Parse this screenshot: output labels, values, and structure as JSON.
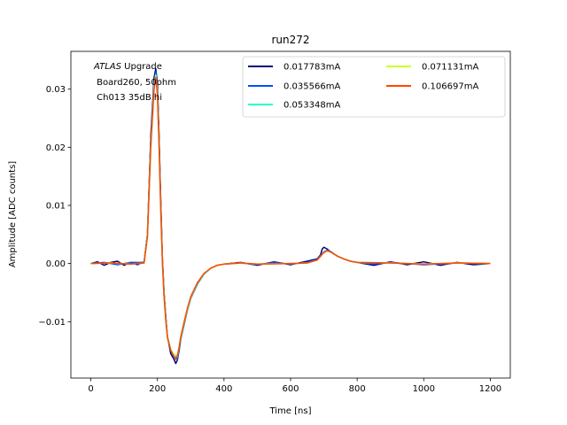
{
  "chart_data": {
    "type": "line",
    "title": "run272",
    "xlabel": "Time [ns]",
    "ylabel": "Amplitude [ADC counts]",
    "xlim": [
      -60,
      1260
    ],
    "ylim": [
      -0.0197,
      0.0365
    ],
    "xticks": [
      0,
      200,
      400,
      600,
      800,
      1000,
      1200
    ],
    "yticks": [
      -0.01,
      0.0,
      0.01,
      0.02,
      0.03
    ],
    "xtick_labels": [
      "0",
      "200",
      "400",
      "600",
      "800",
      "1000",
      "1200"
    ],
    "ytick_labels": [
      "−0.01",
      "0.00",
      "0.01",
      "0.02",
      "0.03"
    ],
    "grid": false,
    "legend_placement": "top-right",
    "annotation": {
      "experiment": "ATLAS",
      "line1_suffix": " Upgrade",
      "line2": " Board260, 50ohm",
      "line3": " Ch013 35dB hi"
    },
    "series": [
      {
        "name": "0.017783mA",
        "color": "#00007f",
        "x": [
          0,
          20,
          40,
          60,
          80,
          100,
          120,
          140,
          160,
          170,
          180,
          190,
          195,
          200,
          205,
          210,
          215,
          220,
          225,
          230,
          240,
          250,
          255,
          260,
          265,
          270,
          280,
          290,
          300,
          320,
          340,
          360,
          380,
          400,
          450,
          500,
          550,
          600,
          650,
          680,
          690,
          695,
          700,
          710,
          720,
          740,
          760,
          780,
          800,
          850,
          900,
          950,
          1000,
          1050,
          1100,
          1150,
          1200
        ],
        "y": [
          0.0,
          0.0003,
          -0.0003,
          0.0002,
          0.0004,
          -0.0003,
          0.0002,
          -0.0002,
          0.0003,
          0.005,
          0.022,
          0.032,
          0.0335,
          0.031,
          0.022,
          0.011,
          0.001,
          -0.005,
          -0.009,
          -0.0125,
          -0.0155,
          -0.0165,
          -0.0172,
          -0.0166,
          -0.015,
          -0.013,
          -0.0105,
          -0.008,
          -0.006,
          -0.0035,
          -0.0018,
          -0.0008,
          -0.0003,
          -0.0001,
          0.0002,
          -0.0003,
          0.0003,
          -0.0002,
          0.0004,
          0.0008,
          0.0015,
          0.0025,
          0.0028,
          0.0025,
          0.002,
          0.0013,
          0.0008,
          0.0004,
          0.0002,
          -0.0003,
          0.0003,
          -0.0002,
          0.0003,
          -0.0003,
          0.0002,
          -0.0002,
          0.0
        ]
      },
      {
        "name": "0.035566mA",
        "color": "#0050ff",
        "x": [
          0,
          40,
          80,
          120,
          160,
          170,
          180,
          190,
          195,
          200,
          205,
          210,
          215,
          220,
          225,
          230,
          240,
          250,
          260,
          265,
          270,
          280,
          290,
          300,
          320,
          340,
          360,
          380,
          400,
          450,
          500,
          550,
          600,
          650,
          680,
          700,
          710,
          720,
          740,
          760,
          780,
          800,
          850,
          900,
          1000,
          1100,
          1200
        ],
        "y": [
          0.0,
          0.0002,
          -0.0002,
          0.0002,
          0.0002,
          0.005,
          0.021,
          0.031,
          0.033,
          0.03,
          0.021,
          0.01,
          0.0005,
          -0.0055,
          -0.0095,
          -0.0125,
          -0.015,
          -0.016,
          -0.0165,
          -0.015,
          -0.013,
          -0.0105,
          -0.008,
          -0.006,
          -0.0035,
          -0.0018,
          -0.0008,
          -0.0003,
          -0.0001,
          0.0001,
          -0.0002,
          0.0002,
          -0.0001,
          0.0002,
          0.0007,
          0.002,
          0.0023,
          0.0021,
          0.0013,
          0.0008,
          0.0004,
          0.0002,
          -0.0001,
          0.0002,
          -0.0002,
          0.0001,
          0.0
        ]
      },
      {
        "name": "0.053348mA",
        "color": "#2affca",
        "x": [
          0,
          60,
          120,
          160,
          170,
          180,
          190,
          195,
          200,
          205,
          210,
          215,
          220,
          225,
          230,
          240,
          250,
          260,
          270,
          280,
          290,
          300,
          320,
          340,
          360,
          380,
          400,
          450,
          500,
          600,
          650,
          680,
          700,
          710,
          720,
          740,
          760,
          780,
          800,
          900,
          1000,
          1100,
          1200
        ],
        "y": [
          0.0,
          0.0001,
          -0.0001,
          0.0001,
          0.0048,
          0.0205,
          0.0305,
          0.0325,
          0.0295,
          0.0205,
          0.0095,
          0.0003,
          -0.0055,
          -0.0095,
          -0.0125,
          -0.0148,
          -0.0158,
          -0.016,
          -0.0128,
          -0.0103,
          -0.0079,
          -0.0059,
          -0.0034,
          -0.0018,
          -0.0008,
          -0.0003,
          -0.0001,
          0.0001,
          -0.0001,
          0.0,
          0.0001,
          0.0006,
          0.0019,
          0.0022,
          0.002,
          0.0013,
          0.0008,
          0.0004,
          0.0002,
          0.0001,
          -0.0001,
          0.0001,
          0.0
        ]
      },
      {
        "name": "0.071131mA",
        "color": "#ceff29",
        "x": [
          0,
          60,
          120,
          160,
          170,
          180,
          190,
          195,
          200,
          205,
          210,
          215,
          220,
          225,
          230,
          240,
          250,
          260,
          270,
          280,
          290,
          300,
          320,
          340,
          360,
          380,
          400,
          450,
          500,
          600,
          650,
          680,
          700,
          710,
          720,
          740,
          760,
          780,
          800,
          900,
          1000,
          1100,
          1200
        ],
        "y": [
          0.0,
          0.0001,
          -0.0001,
          0.0001,
          0.0047,
          0.0203,
          0.0303,
          0.0323,
          0.0293,
          0.0203,
          0.0093,
          0.0002,
          -0.0056,
          -0.0096,
          -0.0126,
          -0.0148,
          -0.0157,
          -0.0158,
          -0.0127,
          -0.0102,
          -0.0078,
          -0.0058,
          -0.0033,
          -0.0017,
          -0.0008,
          -0.0003,
          -0.0001,
          0.0001,
          -0.0001,
          0.0,
          0.0001,
          0.0006,
          0.0019,
          0.0022,
          0.002,
          0.0013,
          0.0008,
          0.0004,
          0.0002,
          0.0001,
          -0.0001,
          0.0001,
          0.0
        ]
      },
      {
        "name": "0.106697mA",
        "color": "#ff4800",
        "x": [
          0,
          60,
          120,
          160,
          170,
          180,
          190,
          195,
          200,
          205,
          210,
          215,
          220,
          225,
          230,
          240,
          250,
          255,
          260,
          265,
          270,
          280,
          290,
          300,
          320,
          340,
          360,
          380,
          400,
          450,
          500,
          600,
          650,
          680,
          700,
          710,
          720,
          740,
          760,
          780,
          800,
          900,
          1000,
          1100,
          1200
        ],
        "y": [
          0.0,
          0.0001,
          -0.0001,
          0.0001,
          0.0046,
          0.02,
          0.03,
          0.032,
          0.029,
          0.02,
          0.0092,
          0.0002,
          -0.0057,
          -0.0097,
          -0.0127,
          -0.0149,
          -0.016,
          -0.0165,
          -0.0158,
          -0.0145,
          -0.0126,
          -0.0101,
          -0.0077,
          -0.0057,
          -0.0033,
          -0.0017,
          -0.0008,
          -0.0003,
          -0.0001,
          0.0001,
          -0.0001,
          0.0,
          0.0001,
          0.0006,
          0.0019,
          0.0022,
          0.002,
          0.0013,
          0.0008,
          0.0004,
          0.0002,
          0.0001,
          -0.0001,
          0.0001,
          0.0
        ]
      }
    ]
  }
}
